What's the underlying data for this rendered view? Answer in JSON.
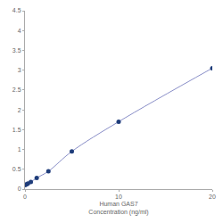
{
  "chart_data": {
    "type": "scatter",
    "x_label": "Human GAS7\nConcentration (ng/ml)",
    "x": [
      0,
      0.156,
      0.3125,
      0.625,
      1.25,
      2.5,
      5,
      10,
      20
    ],
    "values": [
      0.1,
      0.12,
      0.14,
      0.18,
      0.28,
      0.45,
      0.95,
      1.7,
      3.05
    ],
    "color": "#1f3d7a",
    "marker": "circle",
    "line_style": "solid",
    "xlim": [
      0,
      20
    ],
    "xticks": [
      0,
      10,
      20
    ],
    "ylim": [
      0,
      4.5
    ],
    "yticks": [
      0,
      0.5,
      1,
      1.5,
      2,
      2.5,
      3,
      3.5,
      4,
      4.5
    ],
    "grid": false
  }
}
